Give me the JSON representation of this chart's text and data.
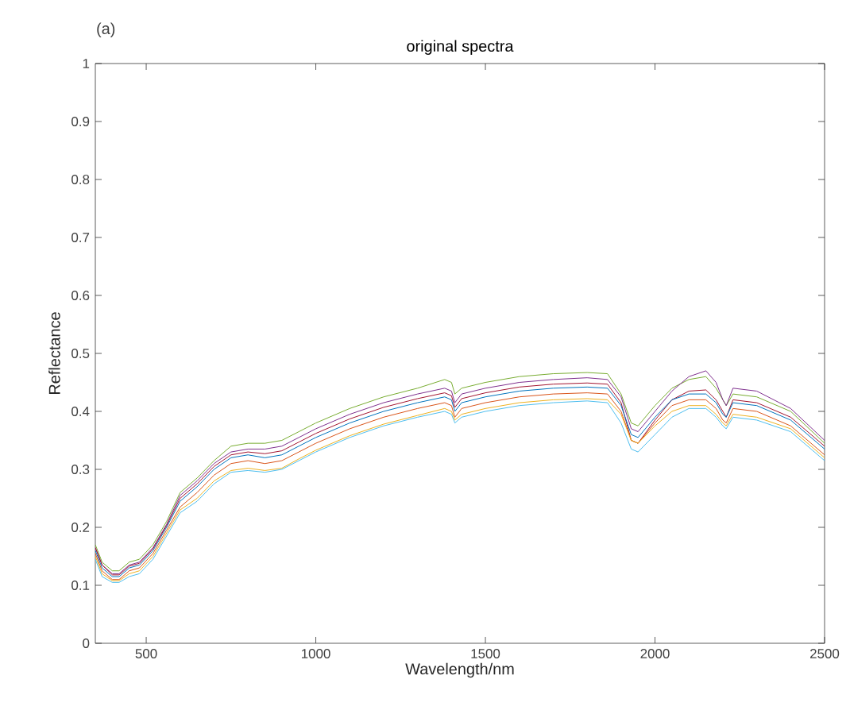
{
  "chart_data": {
    "type": "line",
    "title": "original spectra",
    "xlabel": "Wavelength/nm",
    "ylabel": "Reflectance",
    "annotations": [
      "(a)"
    ],
    "x": [
      350,
      370,
      400,
      420,
      450,
      480,
      520,
      560,
      600,
      650,
      700,
      750,
      800,
      850,
      900,
      950,
      1000,
      1100,
      1200,
      1300,
      1380,
      1400,
      1410,
      1430,
      1500,
      1600,
      1700,
      1800,
      1860,
      1900,
      1930,
      1950,
      2000,
      2050,
      2100,
      2150,
      2180,
      2200,
      2210,
      2230,
      2300,
      2400,
      2500
    ],
    "series": [
      {
        "color": "#77ac30",
        "values": [
          0.17,
          0.14,
          0.125,
          0.125,
          0.14,
          0.145,
          0.17,
          0.21,
          0.26,
          0.285,
          0.315,
          0.34,
          0.345,
          0.345,
          0.35,
          0.365,
          0.38,
          0.405,
          0.425,
          0.44,
          0.455,
          0.45,
          0.43,
          0.44,
          0.45,
          0.46,
          0.465,
          0.467,
          0.465,
          0.43,
          0.38,
          0.375,
          0.41,
          0.44,
          0.455,
          0.46,
          0.44,
          0.42,
          0.41,
          0.43,
          0.425,
          0.4,
          0.345
        ]
      },
      {
        "color": "#7e2f8e",
        "values": [
          0.165,
          0.135,
          0.12,
          0.12,
          0.135,
          0.14,
          0.165,
          0.205,
          0.255,
          0.28,
          0.31,
          0.33,
          0.335,
          0.335,
          0.34,
          0.355,
          0.37,
          0.395,
          0.415,
          0.43,
          0.44,
          0.435,
          0.415,
          0.43,
          0.44,
          0.45,
          0.455,
          0.458,
          0.455,
          0.425,
          0.37,
          0.365,
          0.4,
          0.435,
          0.46,
          0.47,
          0.45,
          0.42,
          0.41,
          0.44,
          0.435,
          0.405,
          0.35
        ]
      },
      {
        "color": "#a2142f",
        "values": [
          0.165,
          0.135,
          0.118,
          0.118,
          0.133,
          0.138,
          0.163,
          0.203,
          0.25,
          0.275,
          0.305,
          0.325,
          0.33,
          0.327,
          0.332,
          0.347,
          0.362,
          0.387,
          0.407,
          0.422,
          0.432,
          0.427,
          0.407,
          0.422,
          0.432,
          0.442,
          0.447,
          0.449,
          0.447,
          0.415,
          0.35,
          0.345,
          0.385,
          0.42,
          0.435,
          0.437,
          0.42,
          0.4,
          0.39,
          0.42,
          0.415,
          0.39,
          0.34
        ]
      },
      {
        "color": "#0072bd",
        "values": [
          0.16,
          0.13,
          0.115,
          0.115,
          0.13,
          0.135,
          0.16,
          0.2,
          0.245,
          0.27,
          0.3,
          0.32,
          0.325,
          0.32,
          0.325,
          0.34,
          0.355,
          0.38,
          0.4,
          0.415,
          0.425,
          0.42,
          0.4,
          0.415,
          0.425,
          0.435,
          0.44,
          0.442,
          0.44,
          0.41,
          0.36,
          0.355,
          0.39,
          0.42,
          0.43,
          0.43,
          0.415,
          0.395,
          0.39,
          0.415,
          0.41,
          0.385,
          0.335
        ]
      },
      {
        "color": "#d95319",
        "values": [
          0.155,
          0.125,
          0.11,
          0.11,
          0.125,
          0.13,
          0.155,
          0.195,
          0.235,
          0.26,
          0.29,
          0.31,
          0.315,
          0.31,
          0.315,
          0.33,
          0.345,
          0.37,
          0.39,
          0.405,
          0.415,
          0.41,
          0.39,
          0.405,
          0.415,
          0.425,
          0.43,
          0.432,
          0.43,
          0.4,
          0.35,
          0.345,
          0.38,
          0.41,
          0.42,
          0.42,
          0.405,
          0.385,
          0.38,
          0.405,
          0.4,
          0.375,
          0.325
        ]
      },
      {
        "color": "#edb120",
        "values": [
          0.15,
          0.12,
          0.108,
          0.108,
          0.12,
          0.125,
          0.15,
          0.19,
          0.23,
          0.25,
          0.28,
          0.298,
          0.302,
          0.298,
          0.302,
          0.318,
          0.333,
          0.358,
          0.378,
          0.393,
          0.405,
          0.4,
          0.385,
          0.395,
          0.405,
          0.415,
          0.42,
          0.422,
          0.42,
          0.395,
          0.35,
          0.345,
          0.375,
          0.4,
          0.41,
          0.41,
          0.395,
          0.38,
          0.375,
          0.395,
          0.39,
          0.37,
          0.32
        ]
      },
      {
        "color": "#4dbeee",
        "values": [
          0.145,
          0.115,
          0.105,
          0.105,
          0.115,
          0.12,
          0.145,
          0.185,
          0.225,
          0.245,
          0.275,
          0.295,
          0.298,
          0.295,
          0.3,
          0.315,
          0.33,
          0.355,
          0.375,
          0.39,
          0.4,
          0.395,
          0.38,
          0.39,
          0.4,
          0.41,
          0.415,
          0.418,
          0.415,
          0.38,
          0.335,
          0.33,
          0.36,
          0.39,
          0.405,
          0.405,
          0.39,
          0.375,
          0.37,
          0.39,
          0.385,
          0.365,
          0.315
        ]
      }
    ],
    "xlim": [
      350,
      2500
    ],
    "xticks": [
      500,
      1000,
      1500,
      2000,
      2500
    ],
    "ylim": [
      0,
      1
    ],
    "yticks": [
      0,
      0.1,
      0.2,
      0.3,
      0.4,
      0.5,
      0.6,
      0.7,
      0.8,
      0.9,
      1
    ],
    "grid": false
  }
}
